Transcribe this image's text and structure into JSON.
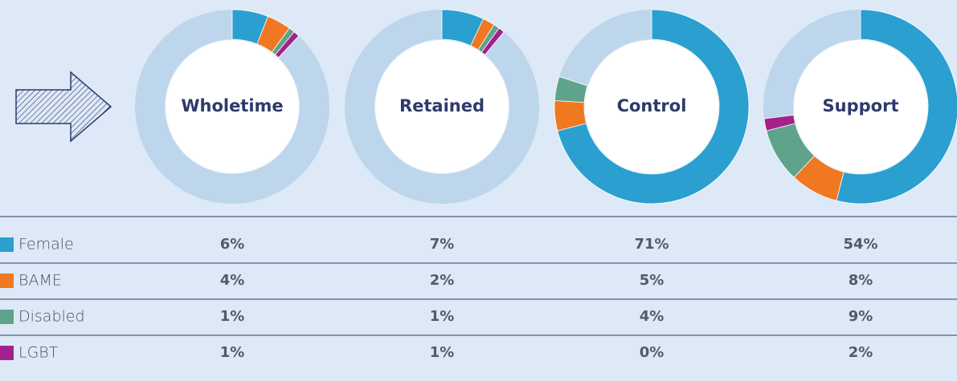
{
  "chart_data": {
    "type": "donut",
    "categories": [
      "Wholetime",
      "Retained",
      "Control",
      "Support"
    ],
    "series": [
      {
        "name": "Female",
        "color": "#2a9fd0",
        "values": [
          6,
          7,
          71,
          54
        ],
        "value_labels": [
          "6%",
          "7%",
          "71%",
          "54%"
        ]
      },
      {
        "name": "BAME",
        "color": "#f07820",
        "values": [
          4,
          2,
          5,
          8
        ],
        "value_labels": [
          "4%",
          "2%",
          "5%",
          "8%"
        ]
      },
      {
        "name": "Disabled",
        "color": "#5ea38a",
        "values": [
          1,
          1,
          4,
          9
        ],
        "value_labels": [
          "1%",
          "1%",
          "4%",
          "9%"
        ]
      },
      {
        "name": "LGBT",
        "color": "#a3218a",
        "values": [
          1,
          1,
          0,
          2
        ],
        "value_labels": [
          "1%",
          "1%",
          "0%",
          "2%"
        ]
      }
    ]
  }
}
